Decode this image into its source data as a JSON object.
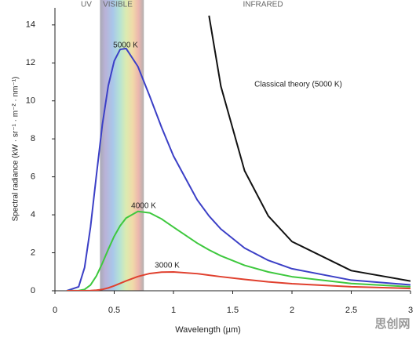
{
  "chart_data": {
    "type": "line",
    "y_label": "Spectral radiance (kW · sr⁻¹ · m⁻² · nm⁻¹)",
    "x_label": "Wavelength (µm)",
    "regions": [
      "UV",
      "VISIBLE",
      "INFRARED"
    ],
    "visible_band": [
      0.38,
      0.75
    ],
    "watermark": "思创网",
    "x": [
      0.1,
      0.2,
      0.25,
      0.3,
      0.35,
      0.4,
      0.45,
      0.5,
      0.55,
      0.6,
      0.7,
      0.8,
      0.9,
      1.0,
      1.2,
      1.3,
      1.4,
      1.6,
      1.8,
      2.0,
      2.5,
      3.0
    ],
    "series": [
      {
        "name": "5000 K",
        "color": "#3b3fc6",
        "values": [
          0.0,
          0.21,
          1.22,
          3.35,
          6.09,
          8.75,
          10.8,
          12.1,
          12.71,
          12.76,
          11.81,
          10.24,
          8.6,
          7.1,
          4.79,
          3.94,
          3.25,
          2.25,
          1.6,
          1.16,
          0.56,
          0.31
        ]
      },
      {
        "name": "4000 K",
        "color": "#3ec83e",
        "values": [
          0.0,
          0.01,
          0.07,
          0.3,
          0.78,
          1.45,
          2.18,
          2.87,
          3.42,
          3.83,
          4.18,
          4.1,
          3.78,
          3.35,
          2.51,
          2.15,
          1.84,
          1.34,
          0.99,
          0.74,
          0.38,
          0.21
        ]
      },
      {
        "name": "3000 K",
        "color": "#e0402e",
        "values": [
          0.0,
          0.0,
          0.0,
          0.01,
          0.03,
          0.07,
          0.15,
          0.26,
          0.39,
          0.52,
          0.75,
          0.91,
          0.98,
          0.99,
          0.9,
          0.82,
          0.74,
          0.6,
          0.47,
          0.37,
          0.21,
          0.12
        ]
      },
      {
        "name": "Classical theory (5000 K)",
        "color": "#111111",
        "values": [
          null,
          null,
          null,
          null,
          null,
          null,
          null,
          null,
          null,
          null,
          null,
          null,
          null,
          null,
          null,
          14.49,
          10.77,
          6.32,
          3.94,
          2.59,
          1.06,
          0.51
        ]
      }
    ],
    "xlim": [
      0,
      3
    ],
    "xticks": [
      0,
      0.5,
      1,
      1.5,
      2,
      2.5,
      3
    ],
    "ylim": [
      0,
      14.9
    ],
    "yticks": [
      0,
      2,
      4,
      6,
      8,
      10,
      12,
      14
    ],
    "grid": false
  }
}
